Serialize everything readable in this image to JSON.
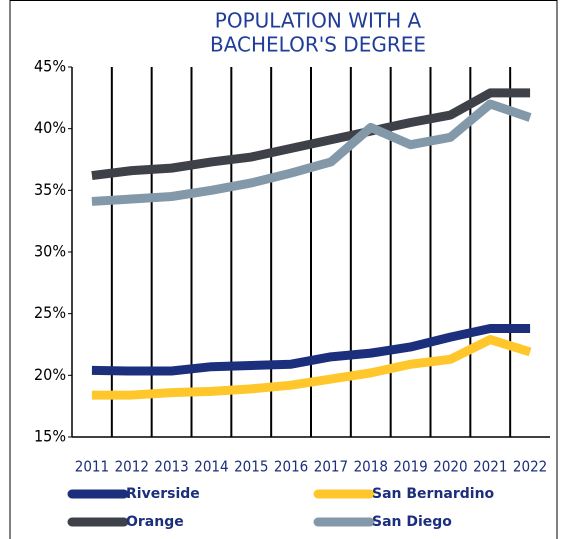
{
  "chart_data": {
    "type": "line",
    "title": "POPULATION WITH A BACHELOR'S DEGREE",
    "title_lines": [
      "POPULATION WITH A",
      "BACHELOR'S DEGREE"
    ],
    "categories": [
      "2011",
      "2012",
      "2013",
      "2014",
      "2015",
      "2016",
      "2017",
      "2018",
      "2019",
      "2020",
      "2021",
      "2022"
    ],
    "series": [
      {
        "name": "Riverside",
        "color": "#1c2f7c",
        "values": [
          20.4,
          20.35,
          20.35,
          20.7,
          20.8,
          20.9,
          21.5,
          21.8,
          22.3,
          23.1,
          23.8,
          23.8
        ]
      },
      {
        "name": "San Bernardino",
        "color": "#ffc72c",
        "values": [
          18.4,
          18.4,
          18.6,
          18.7,
          18.9,
          19.2,
          19.7,
          20.2,
          20.9,
          21.3,
          22.9,
          21.9
        ]
      },
      {
        "name": "Orange",
        "color": "#3e4147",
        "values": [
          36.2,
          36.6,
          36.8,
          37.3,
          37.7,
          38.4,
          39.1,
          39.8,
          40.5,
          41.1,
          42.9,
          42.9
        ]
      },
      {
        "name": "San Diego",
        "color": "#8399a9",
        "values": [
          34.1,
          34.3,
          34.5,
          35.0,
          35.6,
          36.4,
          37.3,
          40.1,
          38.7,
          39.3,
          42.0,
          40.9
        ]
      }
    ],
    "ylim": [
      15,
      45
    ],
    "yticks": [
      {
        "value": 15,
        "label": "15%"
      },
      {
        "value": 20,
        "label": "20%"
      },
      {
        "value": 25,
        "label": "25%"
      },
      {
        "value": 30,
        "label": "30%"
      },
      {
        "value": 35,
        "label": "35%"
      },
      {
        "value": 40,
        "label": "40%"
      },
      {
        "value": 45,
        "label": "45%"
      }
    ],
    "grid": "x",
    "legend": "bottom"
  }
}
